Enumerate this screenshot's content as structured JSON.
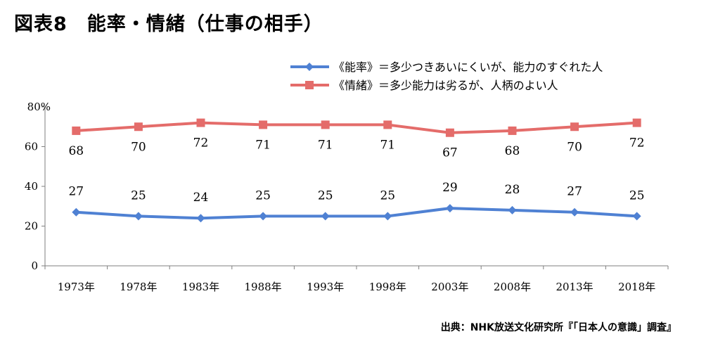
{
  "title": "図表8　能率・情緒（仕事の相手）",
  "source": "出典：NHK放送文化研究所『「日本人の意識」調査』",
  "chart_data": {
    "type": "line",
    "categories": [
      "1973年",
      "1978年",
      "1983年",
      "1988年",
      "1993年",
      "1998年",
      "2003年",
      "2008年",
      "2013年",
      "2018年"
    ],
    "series": [
      {
        "name": "《能率》＝多少つきあいにくいが、能力のすぐれた人",
        "marker": "diamond",
        "color": "#4f81d3",
        "values": [
          27,
          25,
          24,
          25,
          25,
          25,
          29,
          28,
          27,
          25
        ]
      },
      {
        "name": "《情緒》＝多少能力は劣るが、人柄のよい人",
        "marker": "square",
        "color": "#e46c6a",
        "values": [
          68,
          70,
          72,
          71,
          71,
          71,
          67,
          68,
          70,
          72
        ]
      }
    ],
    "ylim": [
      0,
      80
    ],
    "yticks": [
      "0",
      "20",
      "40",
      "60",
      "80%"
    ],
    "legend": "top-right"
  }
}
